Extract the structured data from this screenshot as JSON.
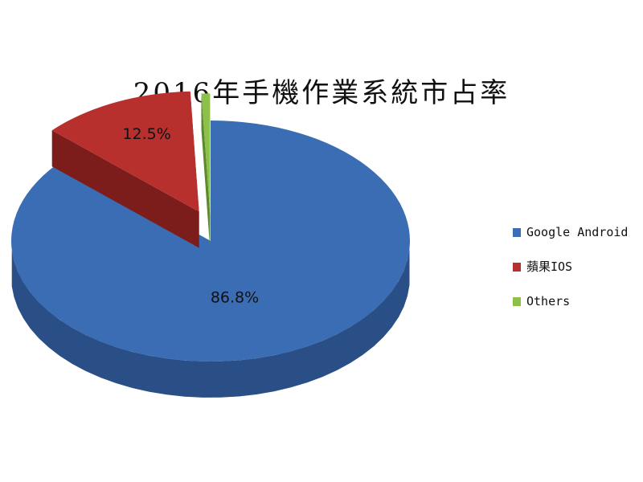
{
  "chart_data": {
    "type": "pie",
    "title": "2016年手機作業系統市占率",
    "series": [
      {
        "name": "Google Android",
        "value": 86.8,
        "label": "86.8%",
        "color": "#3b6db4",
        "side_color": "#2a4f86"
      },
      {
        "name": "蘋果IOS",
        "value": 12.5,
        "label": "12.5%",
        "color": "#b8302e",
        "side_color": "#7c1d1c"
      },
      {
        "name": "Others",
        "value": 0.7,
        "label": "",
        "color": "#8cc04a",
        "side_color": "#5d8a2b"
      }
    ],
    "legend_position": "right",
    "style": "3d-exploded"
  }
}
